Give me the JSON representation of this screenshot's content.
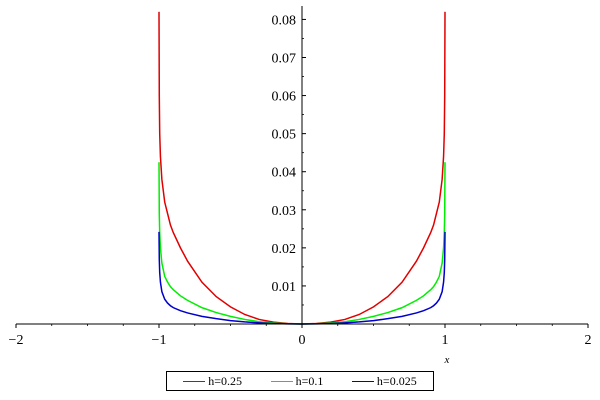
{
  "chart_data": {
    "type": "line",
    "title": "",
    "xlabel": "x",
    "ylabel": "",
    "xlim": [
      -2,
      2
    ],
    "ylim": [
      0,
      0.083
    ],
    "x_ticks": [
      -2,
      -1,
      0,
      1,
      2
    ],
    "x_tick_labels": [
      "−2",
      "−1",
      "0",
      "1",
      "2"
    ],
    "y_ticks": [
      0.01,
      0.02,
      0.03,
      0.04,
      0.05,
      0.06,
      0.07,
      0.08
    ],
    "y_tick_labels": [
      "0.01",
      "0.02",
      "0.03",
      "0.04",
      "0.05",
      "0.06",
      "0.07",
      "0.08"
    ],
    "grid": false,
    "legend_position": "bottom-center",
    "series": [
      {
        "name": "h=0.25",
        "color": "#e00000",
        "x": [
          -1.0,
          -0.998,
          -0.995,
          -0.99,
          -0.98,
          -0.96,
          -0.94,
          -0.92,
          -0.9,
          -0.85,
          -0.8,
          -0.7,
          -0.6,
          -0.5,
          -0.4,
          -0.3,
          -0.2,
          -0.1,
          0,
          0.1,
          0.2,
          0.3,
          0.4,
          0.5,
          0.6,
          0.7,
          0.8,
          0.85,
          0.9,
          0.92,
          0.94,
          0.96,
          0.98,
          0.99,
          0.995,
          0.998,
          1.0
        ],
        "y": [
          0.082,
          0.06,
          0.05,
          0.044,
          0.038,
          0.032,
          0.029,
          0.026,
          0.024,
          0.02,
          0.0165,
          0.011,
          0.0072,
          0.0045,
          0.0025,
          0.0012,
          0.0005,
          0.00012,
          0,
          0.00012,
          0.0005,
          0.0012,
          0.0025,
          0.0045,
          0.0072,
          0.011,
          0.0165,
          0.02,
          0.024,
          0.026,
          0.029,
          0.032,
          0.038,
          0.044,
          0.05,
          0.06,
          0.082
        ]
      },
      {
        "name": "h=0.1",
        "color": "#00ee00",
        "x": [
          -1.0,
          -0.998,
          -0.995,
          -0.99,
          -0.98,
          -0.96,
          -0.94,
          -0.92,
          -0.9,
          -0.85,
          -0.8,
          -0.7,
          -0.6,
          -0.5,
          -0.4,
          -0.3,
          -0.2,
          -0.1,
          0,
          0.1,
          0.2,
          0.3,
          0.4,
          0.5,
          0.6,
          0.7,
          0.8,
          0.85,
          0.9,
          0.92,
          0.94,
          0.96,
          0.98,
          0.99,
          0.995,
          0.998,
          1.0
        ],
        "y": [
          0.0425,
          0.029,
          0.024,
          0.02,
          0.016,
          0.0125,
          0.011,
          0.0098,
          0.009,
          0.0074,
          0.0062,
          0.0043,
          0.003,
          0.002,
          0.0012,
          0.0006,
          0.00025,
          6e-05,
          0,
          6e-05,
          0.00025,
          0.0006,
          0.0012,
          0.002,
          0.003,
          0.0043,
          0.0062,
          0.0074,
          0.009,
          0.0098,
          0.011,
          0.0125,
          0.016,
          0.02,
          0.024,
          0.029,
          0.0425
        ]
      },
      {
        "name": "h=0.025",
        "color": "#0000cc",
        "x": [
          -1.0,
          -0.998,
          -0.995,
          -0.99,
          -0.98,
          -0.96,
          -0.94,
          -0.92,
          -0.9,
          -0.85,
          -0.8,
          -0.7,
          -0.6,
          -0.5,
          -0.4,
          -0.3,
          -0.2,
          -0.1,
          0,
          0.1,
          0.2,
          0.3,
          0.4,
          0.5,
          0.6,
          0.7,
          0.8,
          0.85,
          0.9,
          0.92,
          0.94,
          0.96,
          0.98,
          0.99,
          0.995,
          0.998,
          1.0
        ],
        "y": [
          0.0242,
          0.017,
          0.0135,
          0.011,
          0.0085,
          0.0065,
          0.0055,
          0.0048,
          0.0043,
          0.0035,
          0.0029,
          0.002,
          0.0014,
          0.0009,
          0.00055,
          0.0003,
          0.00012,
          3e-05,
          0,
          3e-05,
          0.00012,
          0.0003,
          0.00055,
          0.0009,
          0.0014,
          0.002,
          0.0029,
          0.0035,
          0.0043,
          0.0048,
          0.0055,
          0.0065,
          0.0085,
          0.011,
          0.0135,
          0.017,
          0.0242
        ]
      }
    ]
  }
}
